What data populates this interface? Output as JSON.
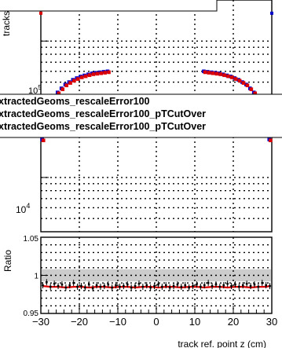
{
  "chart_data": {
    "type": "scatter",
    "top_panel": {
      "ylabel": "tracks",
      "y_tick_labels": [
        "10^5",
        "10^4"
      ],
      "y_scale": "log",
      "ylim": [
        4000,
        200000
      ],
      "legend": [
        "xtractedGeoms_rescaleError100",
        "xtractedGeoms_rescaleError100_pTCutOver",
        "xtractedGeoms_rescaleError100_pTCutOver"
      ],
      "grid": true,
      "series": [
        {
          "color": "#0000cc",
          "x": [
            -29.5,
            -28.5,
            -27.5,
            -26.5,
            -25.5,
            -24.5,
            -23.5,
            -22.5,
            -21.5,
            -20.5,
            -19.5,
            -18.5,
            -17.5,
            -16.5,
            -15.5,
            -14.5,
            -13.5,
            -12.5,
            12.5,
            13.5,
            14.5,
            15.5,
            16.5,
            17.5,
            18.5,
            19.5,
            20.5,
            21.5,
            22.5,
            23.5,
            24.5,
            25.5,
            26.5,
            27.5,
            28.5,
            29.5
          ],
          "y": [
            19000,
            27000,
            33000,
            38000,
            42000,
            45000,
            48000,
            50000,
            52000,
            53500,
            55000,
            56000,
            57000,
            58000,
            58500,
            59000,
            59500,
            60000,
            60000,
            59500,
            59000,
            58500,
            58000,
            57000,
            56000,
            55000,
            53500,
            52000,
            50000,
            48000,
            45000,
            42000,
            38000,
            33000,
            27000,
            19000
          ]
        },
        {
          "color": "#dd0000",
          "x": [
            -29.5,
            -28.5,
            -27.5,
            -26.5,
            -25.5,
            -24.5,
            -23.5,
            -22.5,
            -21.5,
            -20.5,
            -19.5,
            -18.5,
            -17.5,
            -16.5,
            -15.5,
            -14.5,
            -13.5,
            -12.5,
            12.5,
            13.5,
            14.5,
            15.5,
            16.5,
            17.5,
            18.5,
            19.5,
            20.5,
            21.5,
            22.5,
            23.5,
            24.5,
            25.5,
            26.5,
            27.5,
            28.5,
            29.5
          ],
          "y": [
            18700,
            26600,
            32500,
            37500,
            41400,
            44300,
            47300,
            49300,
            51200,
            52700,
            54200,
            55200,
            56200,
            57100,
            57600,
            58100,
            58600,
            59100,
            59100,
            58600,
            58100,
            57600,
            57100,
            56200,
            55200,
            54200,
            52700,
            51200,
            49300,
            47300,
            44300,
            41400,
            37500,
            32500,
            26600,
            18700
          ]
        }
      ]
    },
    "ratio_panel": {
      "ylabel": "Ratio",
      "xlabel": "track ref. point z (cm)",
      "x_ticks": [
        -30,
        -20,
        -10,
        0,
        10,
        20,
        30
      ],
      "y_tick_labels": [
        "1.05",
        "1",
        "0.95"
      ],
      "ylim": [
        0.95,
        1.05
      ],
      "xlim": [
        -30,
        30
      ],
      "grid": true,
      "band": {
        "color": "#cccccc",
        "low": 0.992,
        "high": 1.008
      },
      "series": [
        {
          "color": "#000000",
          "x": [
            -29.5,
            -28.5,
            -27.5,
            -26.5,
            -25.5,
            -24.5,
            -23.5,
            -22.5,
            -21.5,
            -20.5,
            -19.5,
            -18.5,
            -17.5,
            -16.5,
            -15.5,
            -14.5,
            -13.5,
            -12.5,
            -11.5,
            -10.5,
            -9.5,
            -8.5,
            -7.5,
            -6.5,
            -5.5,
            -4.5,
            -3.5,
            -2.5,
            -1.5,
            -0.5,
            0.5,
            1.5,
            2.5,
            3.5,
            4.5,
            5.5,
            6.5,
            7.5,
            8.5,
            9.5,
            10.5,
            11.5,
            12.5,
            13.5,
            14.5,
            15.5,
            16.5,
            17.5,
            18.5,
            19.5,
            20.5,
            21.5,
            22.5,
            23.5,
            24.5,
            25.5,
            26.5,
            27.5,
            28.5,
            29.5
          ],
          "y": [
            0.987,
            0.991,
            0.985,
            0.989,
            0.986,
            0.988,
            0.984,
            0.987,
            0.99,
            0.985,
            0.986,
            0.984,
            0.988,
            0.983,
            0.987,
            0.985,
            0.986,
            0.988,
            0.984,
            0.987,
            0.985,
            0.986,
            0.988,
            0.984,
            0.986,
            0.989,
            0.985,
            0.987,
            0.984,
            0.986,
            0.988,
            0.985,
            0.987,
            0.984,
            0.986,
            0.988,
            0.985,
            0.987,
            0.984,
            0.986,
            0.988,
            0.985,
            0.987,
            0.99,
            0.986,
            0.988,
            0.985,
            0.987,
            0.989,
            0.986,
            0.988,
            0.985,
            0.987,
            0.989,
            0.986,
            0.988,
            0.985,
            0.99,
            0.987,
            0.986
          ]
        },
        {
          "color": "#dd0000",
          "x": [
            -29.5,
            -27.5,
            -25.5,
            -23.5,
            -21.5,
            -19.5,
            -17.5,
            -15.5,
            -13.5,
            -11.5,
            -9.5,
            -7.5,
            -5.5,
            -3.5,
            -1.5,
            0.5,
            2.5,
            4.5,
            6.5,
            8.5,
            10.5,
            12.5,
            14.5,
            16.5,
            18.5,
            20.5,
            22.5,
            24.5,
            26.5,
            28.5,
            29.5
          ],
          "y": [
            0.986,
            0.985,
            0.985,
            0.984,
            0.985,
            0.985,
            0.984,
            0.985,
            0.985,
            0.984,
            0.985,
            0.985,
            0.984,
            0.985,
            0.985,
            0.984,
            0.985,
            0.985,
            0.984,
            0.985,
            0.985,
            0.984,
            0.985,
            0.985,
            0.984,
            0.985,
            0.985,
            0.984,
            0.985,
            0.985,
            0.986
          ]
        }
      ]
    }
  }
}
